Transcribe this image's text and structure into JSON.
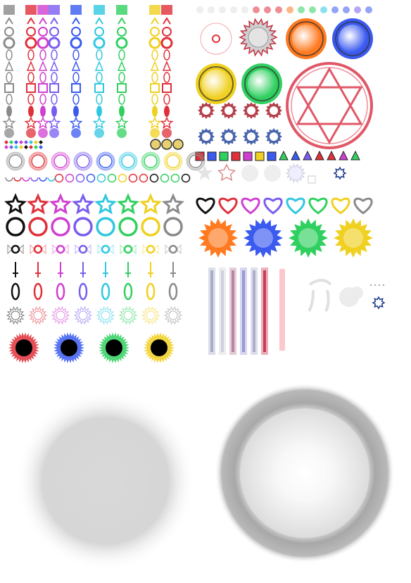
{
  "sheet": {
    "palette": {
      "gray": "#8a8a8a",
      "red": "#e0303a",
      "magenta": "#d040d0",
      "purple": "#7a5cf0",
      "blue": "#3a5af0",
      "cyan": "#30c8e0",
      "green": "#30d060",
      "yellow": "#f0d020",
      "orange": "#ff7a20",
      "black": "#111111"
    },
    "columns_top_left": [
      "gray",
      "red",
      "magenta",
      "purple",
      "blue",
      "cyan",
      "green",
      "yellow"
    ],
    "ring_colors_row": [
      "gray",
      "red",
      "magenta",
      "purple",
      "blue",
      "cyan",
      "green",
      "yellow",
      "gray"
    ],
    "orb_colors_top_right": [
      "orange",
      "blue",
      "yellow",
      "green"
    ],
    "heart_colors": [
      "black",
      "red",
      "magenta",
      "purple",
      "cyan",
      "green",
      "yellow",
      "gray"
    ],
    "splat_colors": [
      "orange",
      "blue",
      "green",
      "yellow"
    ],
    "dark_burst_colors": [
      "red",
      "blue",
      "green",
      "yellow"
    ],
    "icons": {
      "big_magic_circle": "hexagram-circle-icon",
      "large_soft_glow": "soft-glow-sprite",
      "large_textured_orb": "textured-orb-sprite"
    }
  }
}
